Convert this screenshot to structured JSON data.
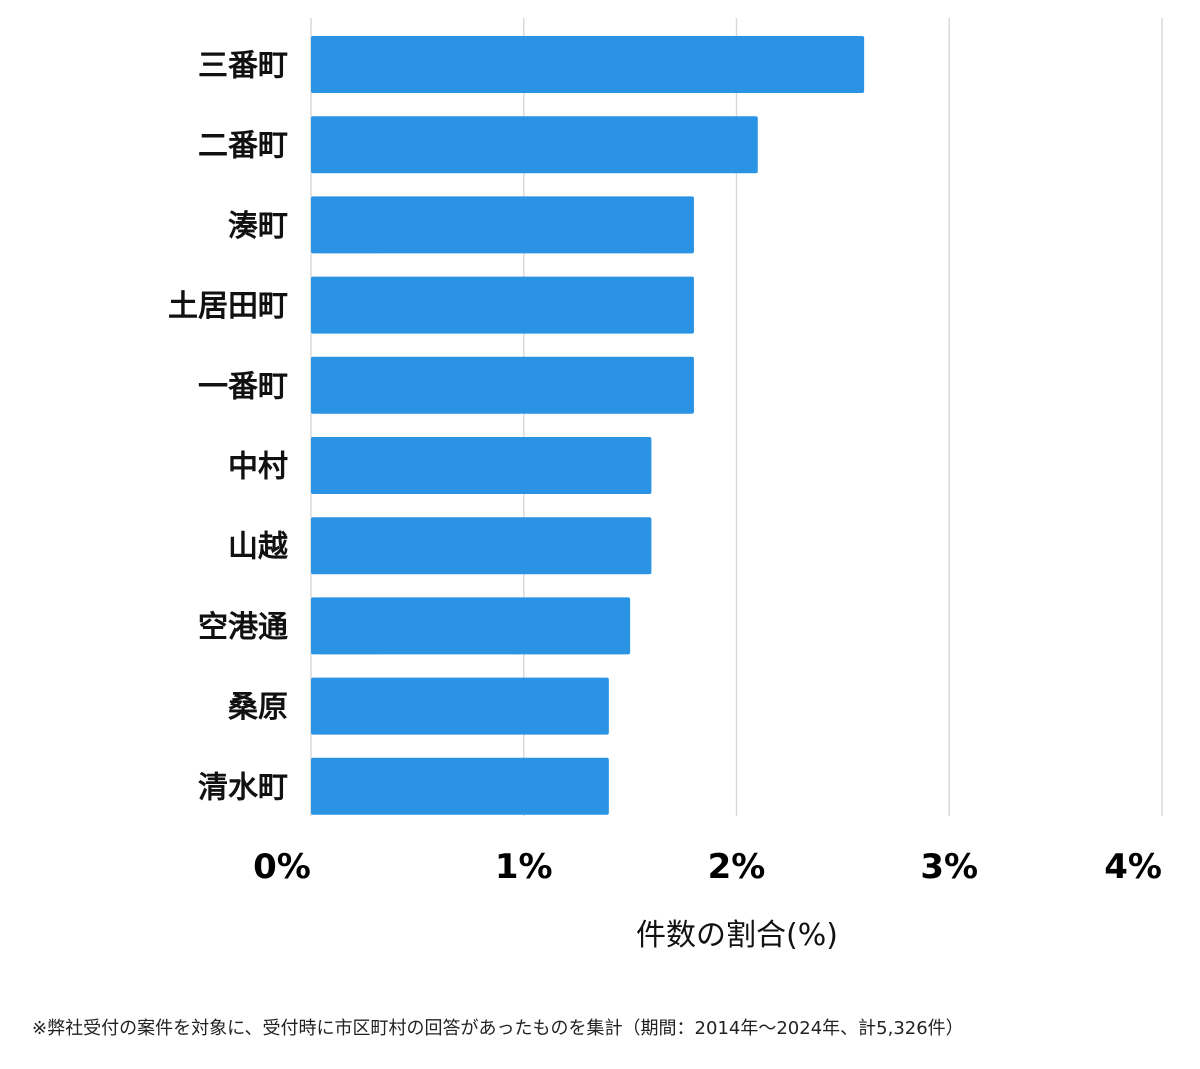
{
  "chart_data": {
    "type": "bar",
    "orientation": "horizontal",
    "categories": [
      "三番町",
      "二番町",
      "湊町",
      "土居田町",
      "一番町",
      "中村",
      "山越",
      "空港通",
      "桑原",
      "清水町"
    ],
    "values": [
      2.6,
      2.1,
      1.8,
      1.8,
      1.8,
      1.6,
      1.6,
      1.5,
      1.4,
      1.4
    ],
    "xlabel": "件数の割合(%)",
    "ylabel": "",
    "xlim": [
      0,
      4
    ],
    "xticks": [
      0,
      1,
      2,
      3,
      4
    ],
    "xtick_labels": [
      "0%",
      "1%",
      "2%",
      "3%",
      "4%"
    ],
    "grid": "vertical",
    "bar_color": "#2a93e4"
  },
  "footnote": "※弊社受付の案件を対象に、受付時に市区町村の回答があったものを集計（期間：2014年～2024年、計5,326件）"
}
